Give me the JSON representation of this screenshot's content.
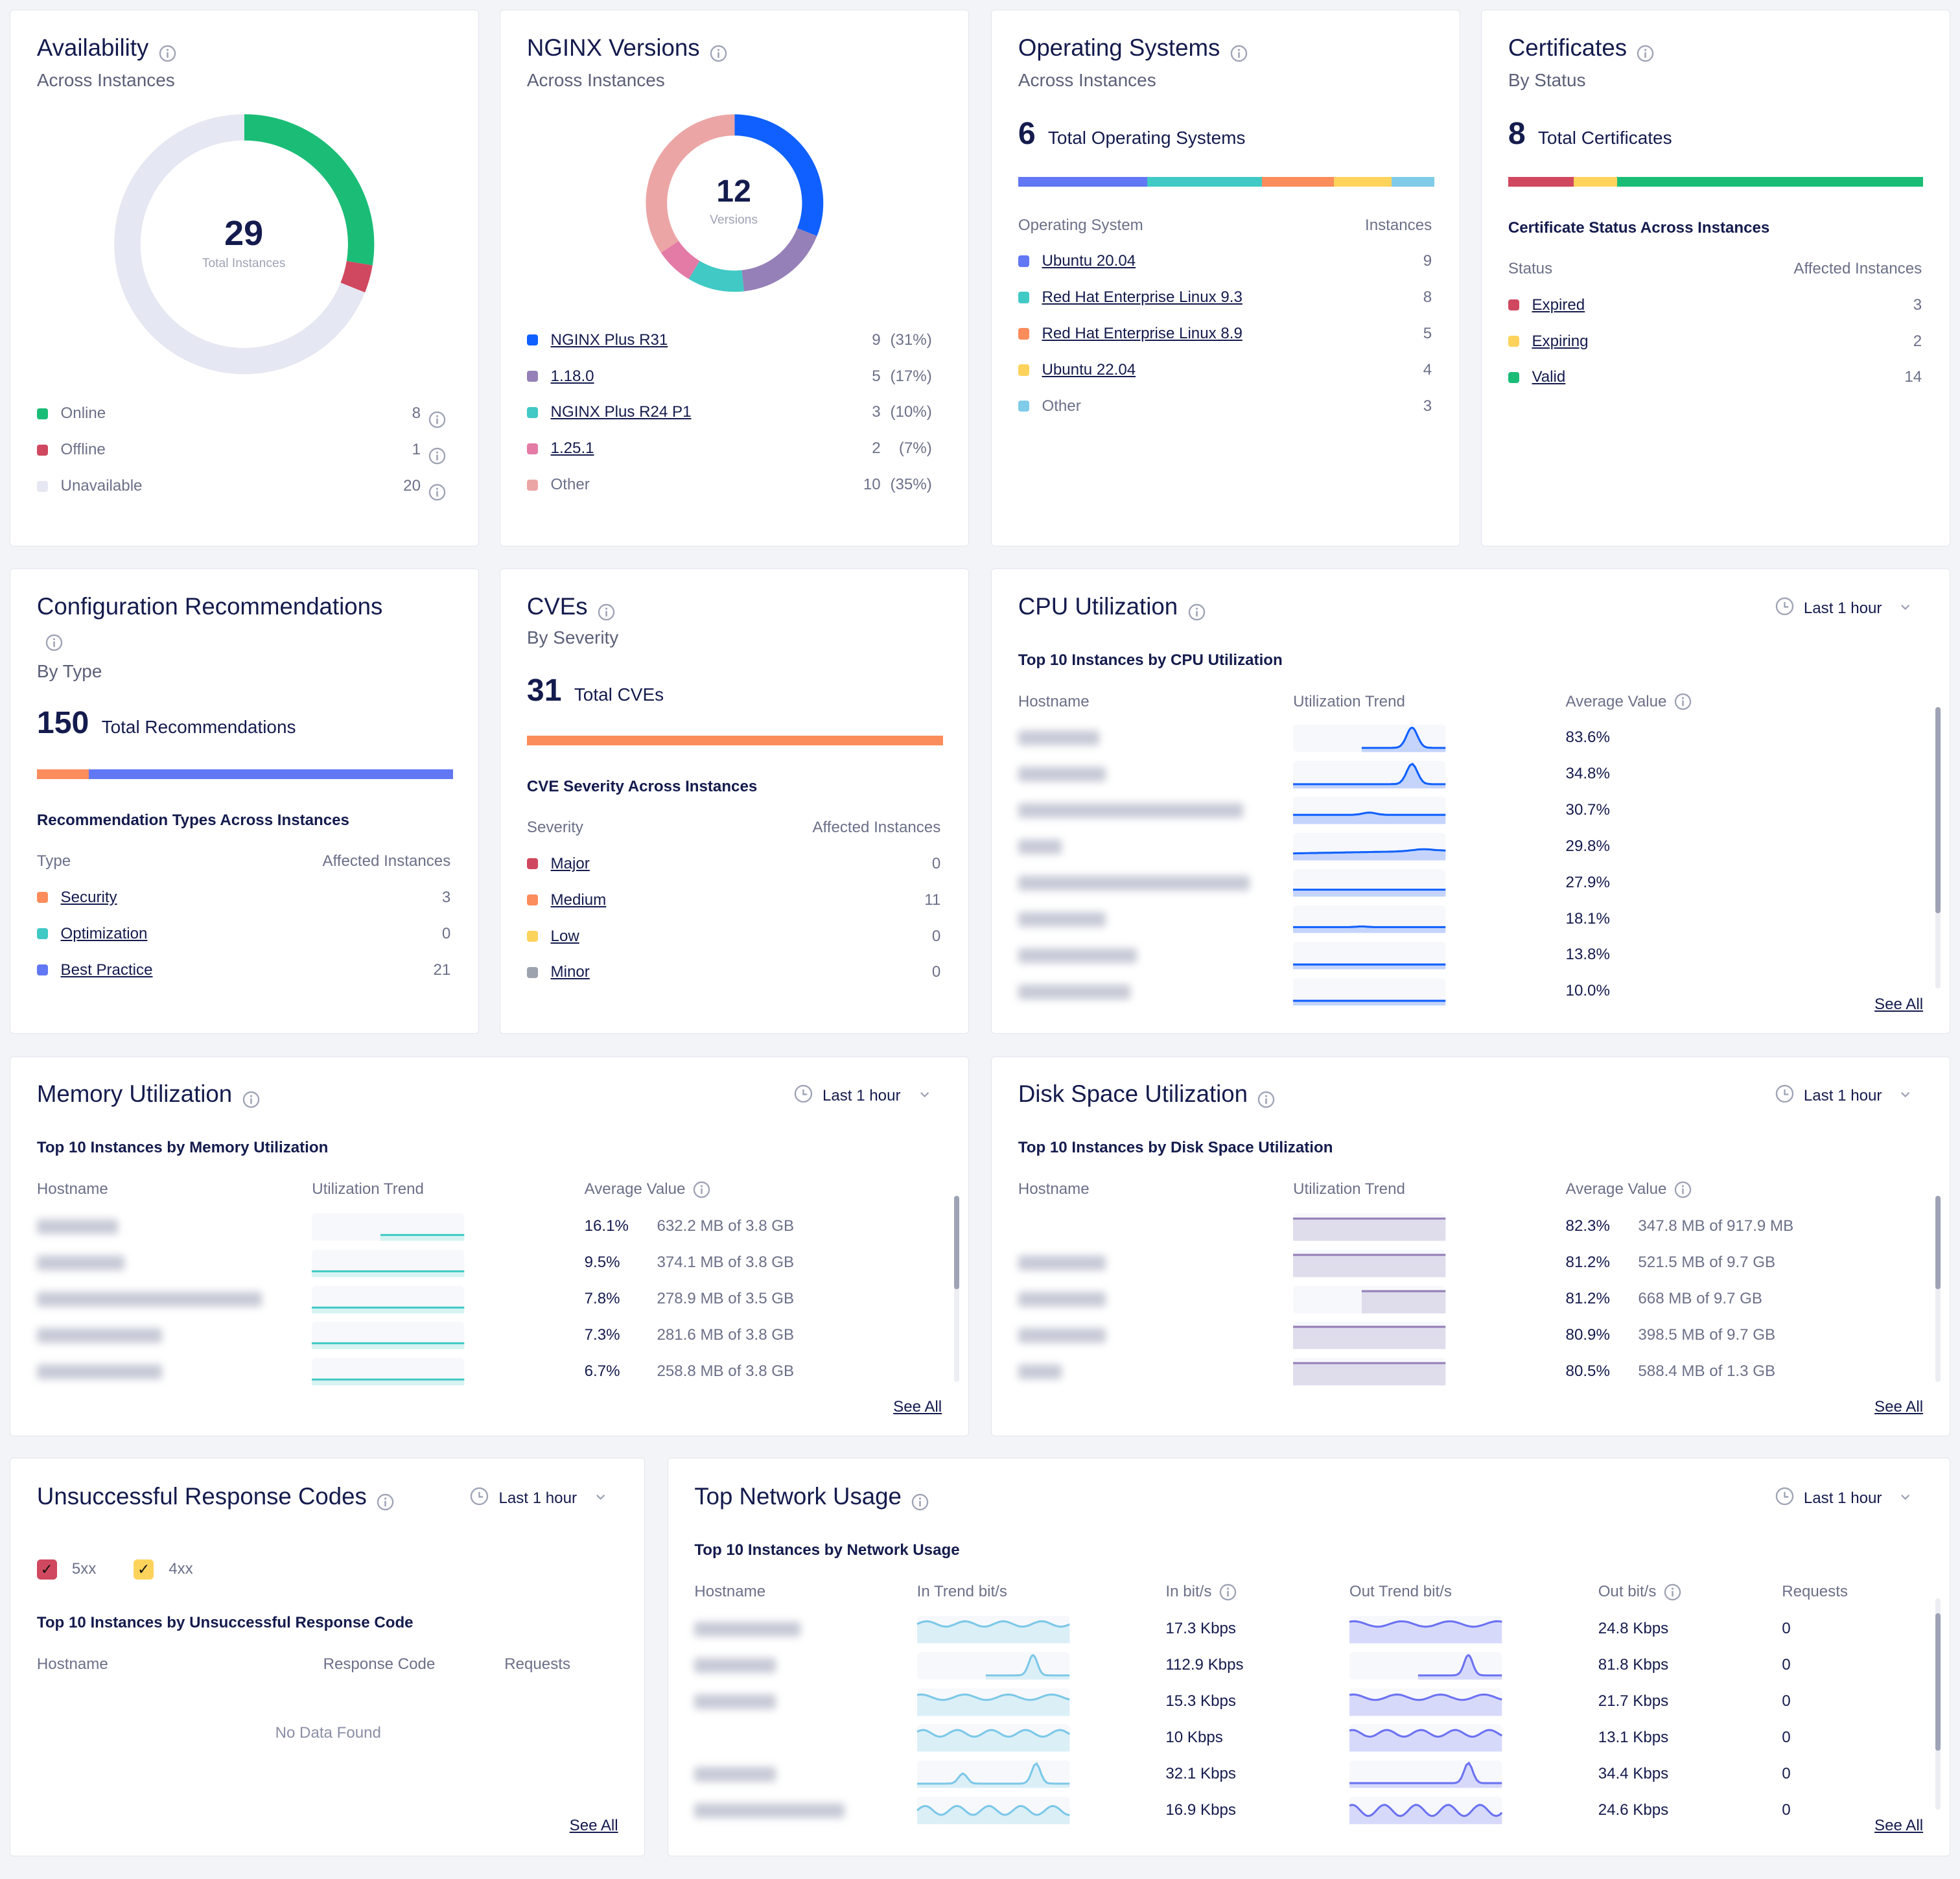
{
  "colors": {
    "online": "#1bbd76",
    "offline": "#d0485f",
    "unavailable": "#e5e7f2",
    "blue": "#1060ff",
    "purple": "#9580b8",
    "teal": "#40c9c5",
    "pink": "#e37ba6",
    "salmon": "#eca5a5",
    "indigo": "#6177f4",
    "orange": "#fb8c5b",
    "yellow": "#fdd35c",
    "lightblue": "#7fcbe8",
    "gray": "#9ca3af"
  },
  "availability": {
    "title": "Availability",
    "subtitle": "Across Instances",
    "total": "29",
    "total_label": "Total Instances",
    "items": [
      {
        "label": "Online",
        "value": 8,
        "color": "#1bbd76"
      },
      {
        "label": "Offline",
        "value": 1,
        "color": "#d0485f"
      },
      {
        "label": "Unavailable",
        "value": 20,
        "color": "#e5e7f2"
      }
    ]
  },
  "nginx": {
    "title": "NGINX Versions",
    "subtitle": "Across Instances",
    "total": "12",
    "total_label": "Versions",
    "items": [
      {
        "label": "NGINX Plus R31",
        "value": 9,
        "pct": "(31%)",
        "color": "#1060ff",
        "link": true
      },
      {
        "label": "1.18.0",
        "value": 5,
        "pct": "(17%)",
        "color": "#9580b8",
        "link": true
      },
      {
        "label": "NGINX Plus R24 P1",
        "value": 3,
        "pct": "(10%)",
        "color": "#40c9c5",
        "link": true
      },
      {
        "label": "1.25.1",
        "value": 2,
        "pct": "(7%)",
        "color": "#e37ba6",
        "link": true
      },
      {
        "label": "Other",
        "value": 10,
        "pct": "(35%)",
        "color": "#eca5a5",
        "link": false
      }
    ]
  },
  "os": {
    "title": "Operating Systems",
    "subtitle": "Across Instances",
    "total": "6",
    "total_label": "Total Operating Systems",
    "col1": "Operating System",
    "col2": "Instances",
    "items": [
      {
        "label": "Ubuntu 20.04",
        "value": 9,
        "color": "#6177f4",
        "link": true
      },
      {
        "label": "Red Hat Enterprise Linux 9.3",
        "value": 8,
        "color": "#40c9c5",
        "link": true
      },
      {
        "label": "Red Hat Enterprise Linux 8.9",
        "value": 5,
        "color": "#fb8c5b",
        "link": true
      },
      {
        "label": "Ubuntu 22.04",
        "value": 4,
        "color": "#fdd35c",
        "link": true
      },
      {
        "label": "Other",
        "value": 3,
        "color": "#7fcbe8",
        "link": false
      }
    ]
  },
  "certs": {
    "title": "Certificates",
    "subtitle": "By Status",
    "total": "8",
    "total_label": "Total Certificates",
    "section": "Certificate Status Across Instances",
    "col1": "Status",
    "col2": "Affected Instances",
    "items": [
      {
        "label": "Expired",
        "value": 3,
        "color": "#d0485f",
        "link": true
      },
      {
        "label": "Expiring",
        "value": 2,
        "color": "#fdd35c",
        "link": true
      },
      {
        "label": "Valid",
        "value": 14,
        "color": "#1bbd76",
        "link": true
      }
    ]
  },
  "config": {
    "title": "Configuration Recommendations",
    "subtitle": "By Type",
    "total": "150",
    "total_label": "Total Recommendations",
    "section": "Recommendation Types Across Instances",
    "col1": "Type",
    "col2": "Affected Instances",
    "items": [
      {
        "label": "Security",
        "value": 3,
        "color": "#fb8c5b",
        "link": true
      },
      {
        "label": "Optimization",
        "value": 0,
        "color": "#40c9c5",
        "link": true
      },
      {
        "label": "Best Practice",
        "value": 21,
        "color": "#6177f4",
        "link": true
      }
    ]
  },
  "cves": {
    "title": "CVEs",
    "subtitle": "By Severity",
    "total": "31",
    "total_label": "Total CVEs",
    "section": "CVE Severity Across Instances",
    "col1": "Severity",
    "col2": "Affected Instances",
    "items": [
      {
        "label": "Major",
        "value": 0,
        "color": "#d0485f",
        "link": true
      },
      {
        "label": "Medium",
        "value": 11,
        "color": "#fb8c5b",
        "link": true
      },
      {
        "label": "Low",
        "value": 0,
        "color": "#fdd35c",
        "link": true
      },
      {
        "label": "Minor",
        "value": 0,
        "color": "#9ca3af",
        "link": true
      }
    ]
  },
  "cpu": {
    "title": "CPU Utilization",
    "time_range": "Last 1 hour",
    "section": "Top 10 Instances by CPU Utilization",
    "columns": [
      "Hostname",
      "Utilization Trend",
      "Average Value"
    ],
    "see_all": "See All",
    "rows": [
      {
        "value": "83.6%"
      },
      {
        "value": "34.8%"
      },
      {
        "value": "30.7%"
      },
      {
        "value": "29.8%"
      },
      {
        "value": "27.9%"
      },
      {
        "value": "18.1%"
      },
      {
        "value": "13.8%"
      },
      {
        "value": "10.0%"
      }
    ]
  },
  "memory": {
    "title": "Memory Utilization",
    "time_range": "Last 1 hour",
    "section": "Top 10 Instances by Memory Utilization",
    "columns": [
      "Hostname",
      "Utilization Trend",
      "Average Value"
    ],
    "see_all": "See All",
    "rows": [
      {
        "value": "16.1%",
        "detail": "632.2 MB of 3.8 GB"
      },
      {
        "value": "9.5%",
        "detail": "374.1 MB of 3.8 GB"
      },
      {
        "value": "7.8%",
        "detail": "278.9 MB of 3.5 GB"
      },
      {
        "value": "7.3%",
        "detail": "281.6 MB of 3.8 GB"
      },
      {
        "value": "6.7%",
        "detail": "258.8 MB of 3.8 GB"
      }
    ]
  },
  "disk": {
    "title": "Disk Space Utilization",
    "time_range": "Last 1 hour",
    "section": "Top 10 Instances by Disk Space Utilization",
    "columns": [
      "Hostname",
      "Utilization Trend",
      "Average Value"
    ],
    "see_all": "See All",
    "rows": [
      {
        "value": "82.3%",
        "detail": "347.8 MB of 917.9 MB"
      },
      {
        "value": "81.2%",
        "detail": "521.5 MB of 9.7 GB"
      },
      {
        "value": "81.2%",
        "detail": "668 MB of 9.7 GB"
      },
      {
        "value": "80.9%",
        "detail": "398.5 MB of 9.7 GB"
      },
      {
        "value": "80.5%",
        "detail": "588.4 MB of 1.3 GB"
      }
    ]
  },
  "responses": {
    "title": "Unsuccessful Response Codes",
    "time_range": "Last 1 hour",
    "filters": [
      {
        "label": "5xx",
        "checked": true,
        "color": "#d0485f"
      },
      {
        "label": "4xx",
        "checked": true,
        "color": "#fdd35c"
      }
    ],
    "section": "Top 10 Instances by Unsuccessful Response Code",
    "columns": [
      "Hostname",
      "Response Code",
      "Requests"
    ],
    "empty": "No Data Found",
    "see_all": "See All"
  },
  "network": {
    "title": "Top Network Usage",
    "time_range": "Last 1 hour",
    "section": "Top 10 Instances by Network Usage",
    "columns": [
      "Hostname",
      "In Trend bit/s",
      "In bit/s",
      "Out Trend bit/s",
      "Out bit/s",
      "Requests"
    ],
    "see_all": "See All",
    "rows": [
      {
        "in": "17.3 Kbps",
        "out": "24.8 Kbps",
        "requests": "0"
      },
      {
        "in": "112.9 Kbps",
        "out": "81.8 Kbps",
        "requests": "0"
      },
      {
        "in": "15.3 Kbps",
        "out": "21.7 Kbps",
        "requests": "0"
      },
      {
        "in": "10 Kbps",
        "out": "13.1 Kbps",
        "requests": "0"
      },
      {
        "in": "32.1 Kbps",
        "out": "34.4 Kbps",
        "requests": "0"
      },
      {
        "in": "16.9 Kbps",
        "out": "24.6 Kbps",
        "requests": "0"
      }
    ]
  }
}
